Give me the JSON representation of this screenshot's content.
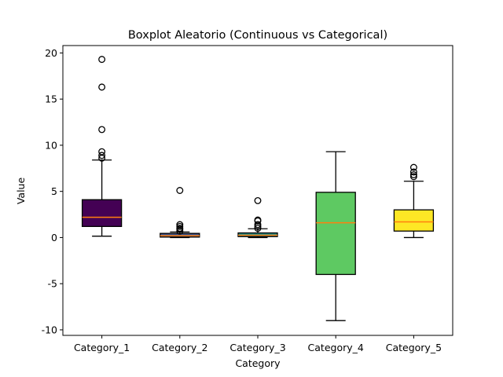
{
  "chart_data": {
    "type": "boxplot",
    "title": "Boxplot Aleatorio (Continuous vs Categorical)",
    "xlabel": "Category",
    "ylabel": "Value",
    "ylim": [
      -10.6,
      20.8
    ],
    "yticks": [
      -10,
      -5,
      0,
      5,
      10,
      15,
      20
    ],
    "grid": false,
    "categories": [
      "Category_1",
      "Category_2",
      "Category_3",
      "Category_4",
      "Category_5"
    ],
    "colors": [
      "#440154",
      "#3b528b",
      "#21918c",
      "#5ec962",
      "#fde725"
    ],
    "median_color": "#ff7f0e",
    "boxes": [
      {
        "whisker_low": 0.15,
        "q1": 1.2,
        "median": 2.2,
        "q3": 4.1,
        "whisker_high": 8.4,
        "outliers": [
          8.6,
          8.9,
          9.3,
          11.7,
          16.3,
          19.3
        ]
      },
      {
        "whisker_low": 0.0,
        "q1": 0.05,
        "median": 0.2,
        "q3": 0.45,
        "whisker_high": 0.6,
        "outliers": [
          0.7,
          0.9,
          1.0,
          1.2,
          1.4,
          5.1
        ]
      },
      {
        "whisker_low": 0.0,
        "q1": 0.1,
        "median": 0.25,
        "q3": 0.5,
        "whisker_high": 0.95,
        "outliers": [
          1.0,
          1.2,
          1.4,
          1.8,
          1.9,
          4.0
        ]
      },
      {
        "whisker_low": -9.0,
        "q1": -4.0,
        "median": 1.6,
        "q3": 4.9,
        "whisker_high": 9.3,
        "outliers": []
      },
      {
        "whisker_low": 0.0,
        "q1": 0.7,
        "median": 1.7,
        "q3": 3.0,
        "whisker_high": 6.1,
        "outliers": [
          6.6,
          6.8,
          7.1,
          7.6
        ]
      }
    ]
  }
}
